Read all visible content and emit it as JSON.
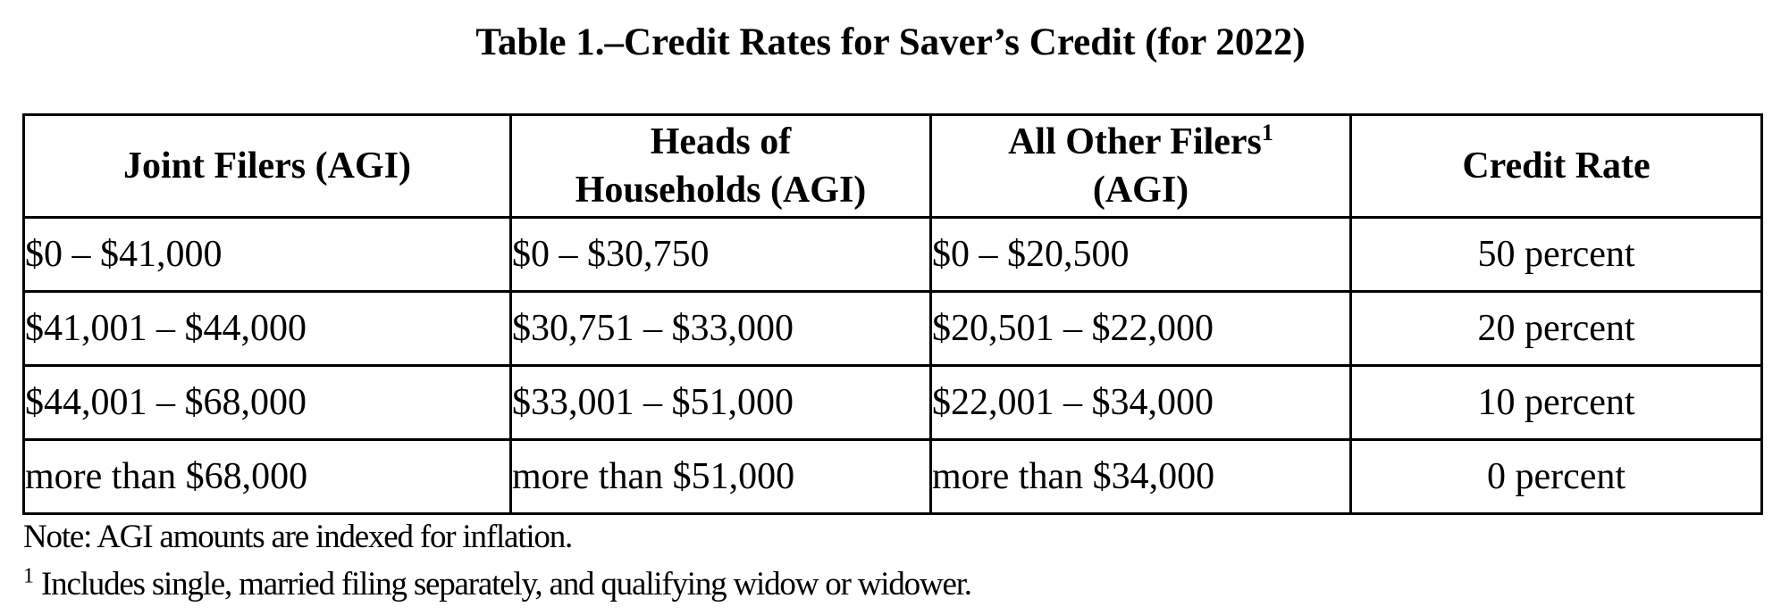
{
  "title": "Table 1.–Credit Rates for Saver’s Credit (for 2022)",
  "table": {
    "headers": {
      "joint": "Joint Filers (AGI)",
      "heads_line1": "Heads of",
      "heads_line2": "Households (AGI)",
      "other_line1": "All Other Filers",
      "other_sup": "1",
      "other_line2": "(AGI)",
      "rate": "Credit Rate"
    },
    "rows": [
      {
        "joint": "$0 – $41,000",
        "heads": "$0 – $30,750",
        "other": "$0 – $20,500",
        "rate": "50 percent"
      },
      {
        "joint": "$41,001 – $44,000",
        "heads": "$30,751 – $33,000",
        "other": "$20,501 – $22,000",
        "rate": "20 percent"
      },
      {
        "joint": "$44,001 – $68,000",
        "heads": "$33,001 – $51,000",
        "other": "$22,001 – $34,000",
        "rate": "10 percent"
      },
      {
        "joint": "more than $68,000",
        "heads": "more than $51,000",
        "other": "more than $34,000",
        "rate": "0 percent"
      }
    ]
  },
  "note": "Note:  AGI amounts are indexed for inflation.",
  "footnote": {
    "marker": "1",
    "text": " Includes single, married filing separately, and qualifying widow or widower."
  }
}
